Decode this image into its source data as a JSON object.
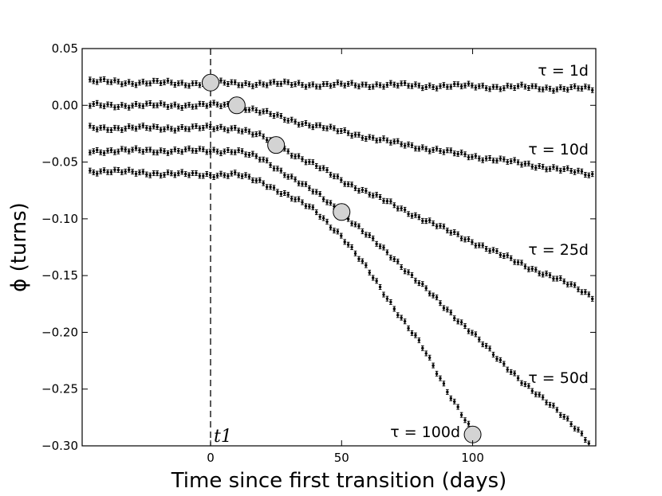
{
  "chart_data": {
    "type": "scatter",
    "title": "",
    "xlabel": "Time since first transition (days)",
    "ylabel": "ϕ (turns)",
    "xlim": [
      -49,
      147
    ],
    "ylim": [
      -0.3,
      0.05
    ],
    "xticks": [
      0,
      50,
      100
    ],
    "xtick_labels": [
      "0",
      "50",
      "100"
    ],
    "yticks": [
      0.05,
      0.0,
      -0.05,
      -0.1,
      -0.15,
      -0.2,
      -0.25,
      -0.3
    ],
    "ytick_labels": [
      "0.05",
      "0.00",
      "−0.05",
      "−0.10",
      "−0.15",
      "−0.20",
      "−0.25",
      "−0.30"
    ],
    "grid": false,
    "vertical_line": {
      "x": 0,
      "style": "dashed",
      "label": "t1"
    },
    "series": [
      {
        "label": "τ = 1d",
        "tau": 1,
        "offset": 0.02,
        "x": [
          -40,
          -30,
          -20,
          -10,
          0,
          10,
          20,
          30,
          40,
          50,
          60,
          70,
          80,
          90,
          100,
          110,
          120,
          130,
          140,
          147
        ],
        "y": [
          0.021,
          0.02,
          0.02,
          0.019,
          0.02,
          0.019,
          0.019,
          0.019,
          0.018,
          0.018,
          0.018,
          0.018,
          0.017,
          0.017,
          0.017,
          0.016,
          0.016,
          0.015,
          0.015,
          0.014
        ]
      },
      {
        "label": "τ = 10d",
        "tau": 10,
        "offset": 0.0,
        "x": [
          -40,
          -30,
          -20,
          -10,
          0,
          10,
          20,
          30,
          40,
          50,
          60,
          70,
          80,
          90,
          100,
          110,
          120,
          130,
          140,
          147
        ],
        "y": [
          0.0,
          0.0,
          0.0,
          0.0,
          0.0,
          0.0,
          -0.006,
          -0.013,
          -0.018,
          -0.023,
          -0.028,
          -0.033,
          -0.037,
          -0.041,
          -0.045,
          -0.048,
          -0.052,
          -0.055,
          -0.059,
          -0.062
        ]
      },
      {
        "label": "τ = 25d",
        "tau": 25,
        "offset": -0.02,
        "x": [
          -40,
          -30,
          -20,
          -10,
          0,
          10,
          20,
          30,
          40,
          50,
          60,
          70,
          80,
          90,
          100,
          110,
          120,
          130,
          140,
          147
        ],
        "y": [
          -0.02,
          -0.02,
          -0.02,
          -0.02,
          -0.02,
          -0.02,
          -0.028,
          -0.041,
          -0.053,
          -0.066,
          -0.077,
          -0.088,
          -0.099,
          -0.11,
          -0.12,
          -0.131,
          -0.141,
          -0.151,
          -0.161,
          -0.17
        ]
      },
      {
        "label": "τ = 50d",
        "tau": 50,
        "offset": -0.04,
        "x": [
          -40,
          -30,
          -20,
          -10,
          0,
          10,
          20,
          30,
          40,
          50,
          60,
          70,
          80,
          90,
          100,
          110,
          120,
          130,
          140,
          145
        ],
        "y": [
          -0.04,
          -0.04,
          -0.04,
          -0.04,
          -0.04,
          -0.04,
          -0.048,
          -0.062,
          -0.077,
          -0.094,
          -0.115,
          -0.135,
          -0.157,
          -0.18,
          -0.2,
          -0.225,
          -0.245,
          -0.265,
          -0.285,
          -0.298
        ]
      },
      {
        "label": "τ = 100d",
        "tau": 100,
        "offset": -0.06,
        "x": [
          -40,
          -30,
          -20,
          -10,
          0,
          10,
          20,
          30,
          40,
          50,
          60,
          70,
          80,
          90,
          95,
          100
        ],
        "y": [
          -0.058,
          -0.059,
          -0.06,
          -0.061,
          -0.061,
          -0.061,
          -0.068,
          -0.08,
          -0.093,
          -0.115,
          -0.145,
          -0.178,
          -0.21,
          -0.25,
          -0.268,
          -0.288
        ]
      }
    ],
    "transition_markers": [
      {
        "x": 0,
        "y": 0.02
      },
      {
        "x": 10,
        "y": 0.0
      },
      {
        "x": 25,
        "y": -0.035
      },
      {
        "x": 50,
        "y": -0.094
      },
      {
        "x": 100,
        "y": -0.29
      }
    ],
    "colors": {
      "points": "#000000",
      "marker_fill": "#d3d3d3",
      "marker_edge": "#000000"
    }
  }
}
